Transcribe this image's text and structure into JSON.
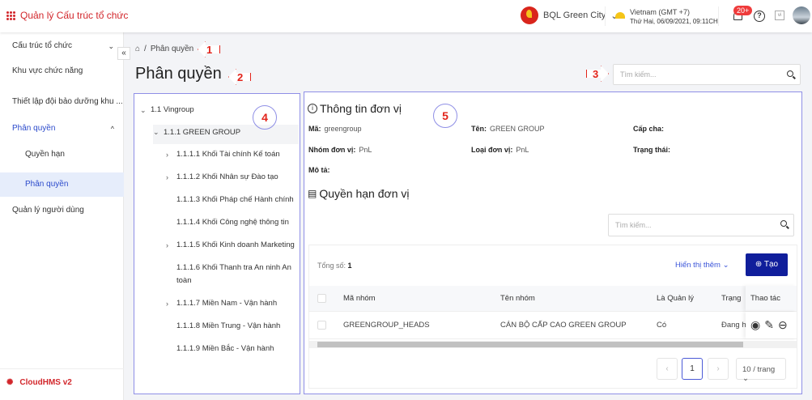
{
  "header": {
    "app_title": "Quản lý Cấu trúc tổ chức",
    "org_name": "BQL Green City",
    "timezone": "Vietnam (GMT +7)",
    "datetime": "Thứ Hai, 06/09/2021, 09:11CH",
    "notification_count": "20+",
    "help": "?",
    "lang": "vi"
  },
  "sidebar": {
    "items": [
      {
        "label": "Cấu trúc tổ chức"
      },
      {
        "label": "Khu vực chức năng"
      },
      {
        "label": "Thiết lập đội bảo dưỡng khu ..."
      },
      {
        "label": "Phân quyền"
      },
      {
        "label": "Quyền hạn"
      },
      {
        "label": "Phân quyền"
      },
      {
        "label": "Quản lý người dùng"
      }
    ],
    "brand": "CloudHMS v2",
    "collapse": "«"
  },
  "breadcrumb": {
    "current": "Phân quyền"
  },
  "page_title": "Phân quyền",
  "search": {
    "placeholder": "Tìm kiếm..."
  },
  "tree": [
    {
      "label": "1.1 Vingroup",
      "arrow": "⌄"
    },
    {
      "label": "1.1.1 GREEN GROUP",
      "arrow": "⌄"
    },
    {
      "label": "1.1.1.1 Khối Tài chính Kế toán",
      "arrow": "›"
    },
    {
      "label": "1.1.1.2 Khối Nhân sự Đào tạo",
      "arrow": "›"
    },
    {
      "label": "1.1.1.3 Khối Pháp chế Hành chính"
    },
    {
      "label": "1.1.1.4 Khối Công nghệ thông tin"
    },
    {
      "label": "1.1.1.5 Khối Kinh doanh Marketing",
      "arrow": "›"
    },
    {
      "label": "1.1.1.6 Khối Thanh tra An ninh An toàn"
    },
    {
      "label": "1.1.1.7 Miền Nam - Vận hành",
      "arrow": "›"
    },
    {
      "label": "1.1.1.8 Miền Trung - Vận hành"
    },
    {
      "label": "1.1.1.9 Miền Bắc - Vận hành"
    }
  ],
  "unit_info": {
    "title": "Thông tin đơn vị",
    "ma_label": "Mã:",
    "ma": "greengroup",
    "ten_label": "Tên:",
    "ten": "GREEN GROUP",
    "cap_cha_label": "Cấp cha:",
    "nhom_label": "Nhóm đơn vị:",
    "nhom": "PnL",
    "loai_label": "Loại đơn vị:",
    "loai": "PnL",
    "trang_thai_label": "Trạng thái:",
    "mo_ta_label": "Mô tả:"
  },
  "permissions": {
    "title": "Quyền hạn đơn vị",
    "search_placeholder": "Tìm kiếm...",
    "total_label": "Tổng số:",
    "total": "1",
    "show_more": "Hiển thị thêm ⌄",
    "create": "Tạo",
    "columns": [
      "Mã nhóm",
      "Tên nhóm",
      "Là Quản lý",
      "Trạng",
      "Thao tác"
    ],
    "rows": [
      {
        "code": "GREENGROUP_HEADS",
        "name": "CÁN BỘ CẤP CAO GREEN GROUP",
        "manager": "Có",
        "status": "Đang h"
      }
    ],
    "page": "1",
    "page_size": "10 / trang"
  },
  "annotations": [
    "1",
    "2",
    "3",
    "4",
    "5"
  ],
  "colors": {
    "brand": "#d2262b",
    "accent": "#101e9b",
    "link": "#3b55d9"
  }
}
